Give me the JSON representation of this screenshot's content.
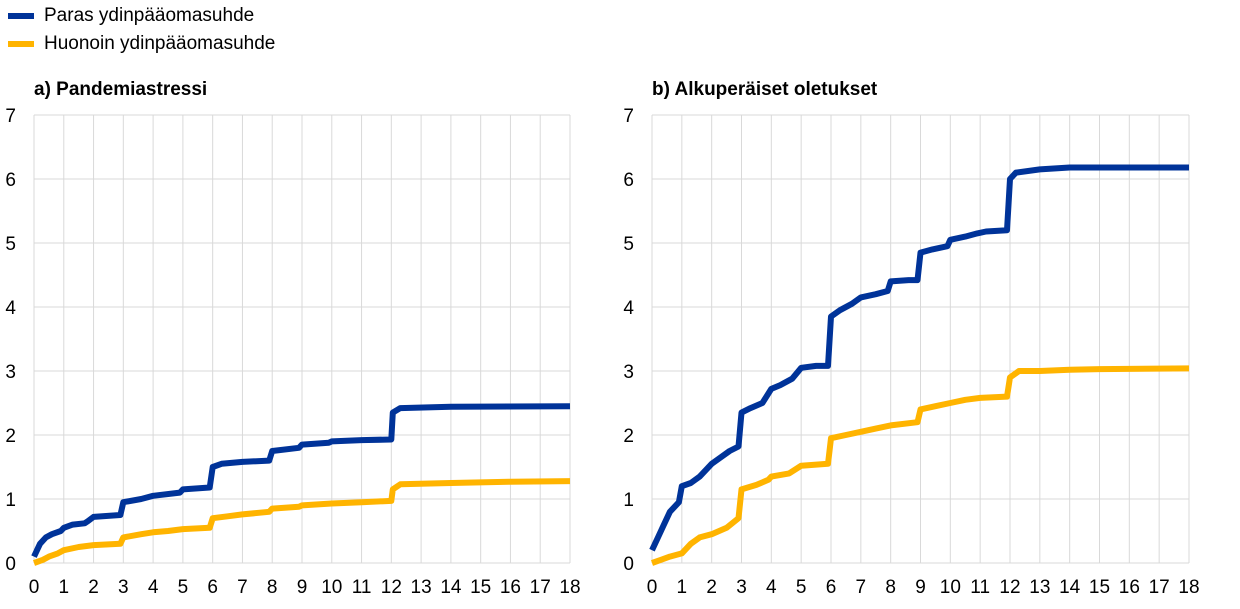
{
  "legend": {
    "items": [
      {
        "label": "Paras ydinpääomasuhde",
        "color": "#003399"
      },
      {
        "label": "Huonoin ydinpääomasuhde",
        "color": "#FFB400"
      }
    ]
  },
  "panels": {
    "a": {
      "title": "a) Pandemiastressi"
    },
    "b": {
      "title": "b) Alkuperäiset oletukset"
    }
  },
  "chart_data": [
    {
      "type": "line",
      "title": "a) Pandemiastressi",
      "xlabel": "",
      "ylabel": "",
      "xlim": [
        0,
        18
      ],
      "ylim": [
        0,
        7
      ],
      "x_ticks": [
        0,
        1,
        2,
        3,
        4,
        5,
        6,
        7,
        8,
        9,
        10,
        11,
        12,
        13,
        14,
        15,
        16,
        17,
        18
      ],
      "y_ticks": [
        0,
        1,
        2,
        3,
        4,
        5,
        6,
        7
      ],
      "grid": true,
      "legend": "top-left",
      "series": [
        {
          "name": "Paras ydinpääomasuhde",
          "color": "#003399",
          "points": [
            [
              0,
              0.1
            ],
            [
              0.1,
              0.2
            ],
            [
              0.2,
              0.3
            ],
            [
              0.4,
              0.4
            ],
            [
              0.6,
              0.45
            ],
            [
              0.9,
              0.5
            ],
            [
              1,
              0.55
            ],
            [
              1.3,
              0.6
            ],
            [
              1.7,
              0.62
            ],
            [
              1.8,
              0.65
            ],
            [
              2,
              0.72
            ],
            [
              2.9,
              0.75
            ],
            [
              3,
              0.95
            ],
            [
              3.6,
              1.0
            ],
            [
              4,
              1.05
            ],
            [
              4.9,
              1.1
            ],
            [
              5,
              1.15
            ],
            [
              5.9,
              1.18
            ],
            [
              6,
              1.5
            ],
            [
              6.3,
              1.55
            ],
            [
              7,
              1.58
            ],
            [
              7.9,
              1.6
            ],
            [
              8,
              1.75
            ],
            [
              8.9,
              1.8
            ],
            [
              9,
              1.85
            ],
            [
              9.9,
              1.88
            ],
            [
              10,
              1.9
            ],
            [
              11,
              1.92
            ],
            [
              12,
              1.93
            ],
            [
              12.05,
              2.35
            ],
            [
              12.3,
              2.42
            ],
            [
              14,
              2.44
            ],
            [
              18,
              2.45
            ]
          ]
        },
        {
          "name": "Huonoin ydinpääomasuhde",
          "color": "#FFB400",
          "points": [
            [
              0,
              0.0
            ],
            [
              0.3,
              0.05
            ],
            [
              0.5,
              0.1
            ],
            [
              0.8,
              0.15
            ],
            [
              1,
              0.2
            ],
            [
              1.5,
              0.25
            ],
            [
              2,
              0.28
            ],
            [
              2.9,
              0.3
            ],
            [
              3,
              0.4
            ],
            [
              3.6,
              0.45
            ],
            [
              4,
              0.48
            ],
            [
              4.5,
              0.5
            ],
            [
              5,
              0.53
            ],
            [
              5.9,
              0.55
            ],
            [
              6,
              0.7
            ],
            [
              6.5,
              0.73
            ],
            [
              7,
              0.76
            ],
            [
              7.9,
              0.8
            ],
            [
              8,
              0.85
            ],
            [
              8.9,
              0.88
            ],
            [
              9,
              0.9
            ],
            [
              10,
              0.93
            ],
            [
              11,
              0.95
            ],
            [
              12,
              0.97
            ],
            [
              12.05,
              1.15
            ],
            [
              12.3,
              1.23
            ],
            [
              14,
              1.25
            ],
            [
              16,
              1.27
            ],
            [
              18,
              1.28
            ]
          ]
        }
      ]
    },
    {
      "type": "line",
      "title": "b) Alkuperäiset oletukset",
      "xlabel": "",
      "ylabel": "",
      "xlim": [
        0,
        18
      ],
      "ylim": [
        0,
        7
      ],
      "x_ticks": [
        0,
        1,
        2,
        3,
        4,
        5,
        6,
        7,
        8,
        9,
        10,
        11,
        12,
        13,
        14,
        15,
        16,
        17,
        18
      ],
      "y_ticks": [
        0,
        1,
        2,
        3,
        4,
        5,
        6,
        7
      ],
      "grid": true,
      "legend": "top-left",
      "series": [
        {
          "name": "Paras ydinpääomasuhde",
          "color": "#003399",
          "points": [
            [
              0,
              0.2
            ],
            [
              0.2,
              0.4
            ],
            [
              0.4,
              0.6
            ],
            [
              0.6,
              0.8
            ],
            [
              0.9,
              0.95
            ],
            [
              1,
              1.2
            ],
            [
              1.3,
              1.25
            ],
            [
              1.6,
              1.35
            ],
            [
              2,
              1.55
            ],
            [
              2.3,
              1.65
            ],
            [
              2.6,
              1.75
            ],
            [
              2.9,
              1.82
            ],
            [
              3,
              2.35
            ],
            [
              3.3,
              2.42
            ],
            [
              3.7,
              2.5
            ],
            [
              4,
              2.72
            ],
            [
              4.3,
              2.78
            ],
            [
              4.7,
              2.88
            ],
            [
              5,
              3.05
            ],
            [
              5.5,
              3.08
            ],
            [
              5.9,
              3.08
            ],
            [
              6,
              3.85
            ],
            [
              6.3,
              3.95
            ],
            [
              6.7,
              4.05
            ],
            [
              7,
              4.15
            ],
            [
              7.5,
              4.2
            ],
            [
              7.9,
              4.25
            ],
            [
              8,
              4.4
            ],
            [
              8.6,
              4.42
            ],
            [
              8.9,
              4.42
            ],
            [
              9,
              4.85
            ],
            [
              9.4,
              4.9
            ],
            [
              9.9,
              4.95
            ],
            [
              10,
              5.05
            ],
            [
              10.5,
              5.1
            ],
            [
              10.9,
              5.15
            ],
            [
              11.2,
              5.18
            ],
            [
              11.9,
              5.2
            ],
            [
              12,
              6.0
            ],
            [
              12.2,
              6.1
            ],
            [
              13,
              6.15
            ],
            [
              14,
              6.18
            ],
            [
              18,
              6.18
            ]
          ]
        },
        {
          "name": "Huonoin ydinpääomasuhde",
          "color": "#FFB400",
          "points": [
            [
              0,
              0.0
            ],
            [
              0.3,
              0.05
            ],
            [
              0.6,
              0.1
            ],
            [
              1,
              0.15
            ],
            [
              1.3,
              0.3
            ],
            [
              1.6,
              0.4
            ],
            [
              2,
              0.45
            ],
            [
              2.5,
              0.55
            ],
            [
              2.9,
              0.7
            ],
            [
              3,
              1.15
            ],
            [
              3.5,
              1.22
            ],
            [
              3.9,
              1.3
            ],
            [
              4,
              1.35
            ],
            [
              4.6,
              1.4
            ],
            [
              5,
              1.52
            ],
            [
              5.9,
              1.55
            ],
            [
              6,
              1.95
            ],
            [
              6.5,
              2.0
            ],
            [
              7,
              2.05
            ],
            [
              7.5,
              2.1
            ],
            [
              8,
              2.15
            ],
            [
              8.9,
              2.2
            ],
            [
              9,
              2.4
            ],
            [
              9.5,
              2.45
            ],
            [
              10,
              2.5
            ],
            [
              10.5,
              2.55
            ],
            [
              11,
              2.58
            ],
            [
              11.9,
              2.6
            ],
            [
              12,
              2.9
            ],
            [
              12.3,
              3.0
            ],
            [
              13,
              3.0
            ],
            [
              14,
              3.02
            ],
            [
              15,
              3.03
            ],
            [
              18,
              3.04
            ]
          ]
        }
      ]
    }
  ]
}
